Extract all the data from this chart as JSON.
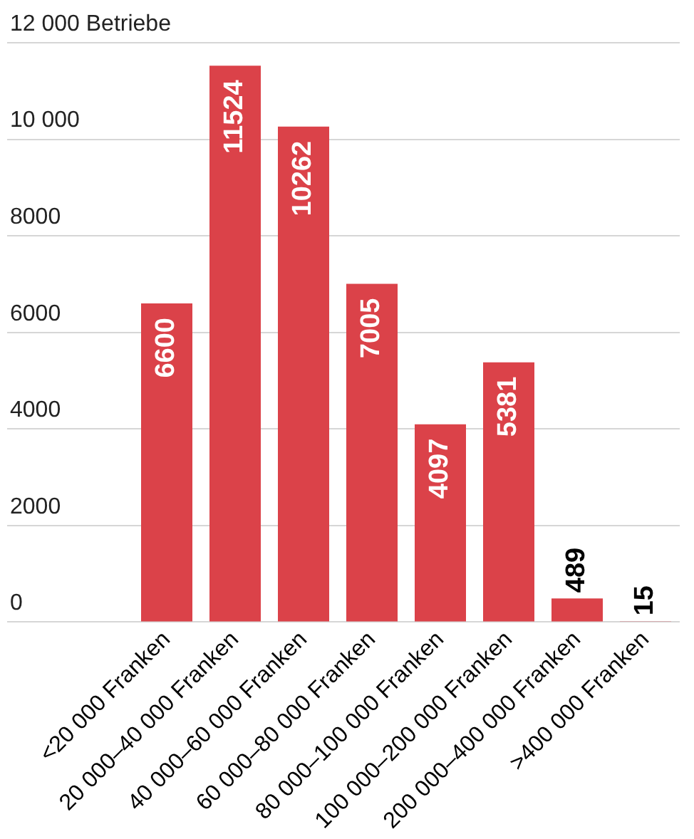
{
  "chart_data": {
    "type": "bar",
    "categories": [
      "<20 000 Franken",
      "20 000–40 000 Franken",
      "40 000–60 000 Franken",
      "60 000–80 000 Franken",
      "80 000–100 000 Franken",
      "100 000–200 000 Franken",
      "200 000–400 000 Franken",
      ">400 000 Franken"
    ],
    "values": [
      6600,
      11524,
      10262,
      7005,
      4097,
      5381,
      489,
      15
    ],
    "color": "#db4249",
    "ylim": [
      0,
      12000
    ],
    "yticks": [
      0,
      2000,
      4000,
      6000,
      8000,
      {
        "value": 10000,
        "label": "10 000"
      },
      {
        "value": 12000,
        "label": "12 000 Betriebe"
      }
    ],
    "grid": "y",
    "data_labels": true
  }
}
